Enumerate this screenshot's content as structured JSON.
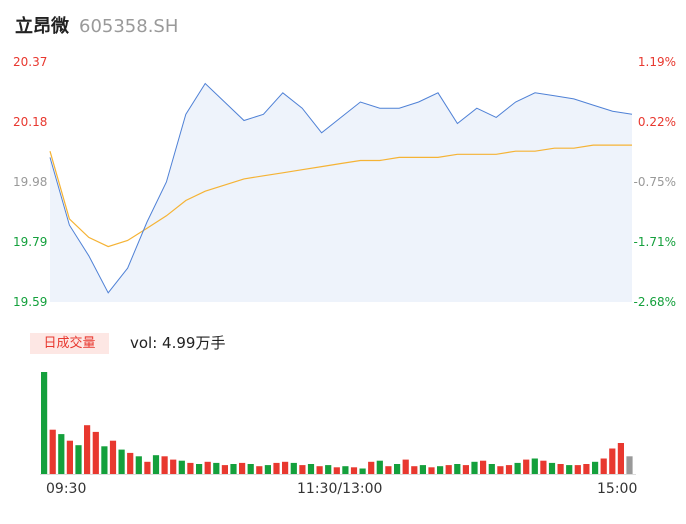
{
  "header": {
    "name": "立昂微",
    "code": "605358.SH"
  },
  "y_left_labels": [
    "20.37",
    "20.18",
    "19.98",
    "19.79",
    "19.59"
  ],
  "y_right_labels": [
    "1.19%",
    "0.22%",
    "-0.75%",
    "-1.71%",
    "-2.68%"
  ],
  "colors": {
    "up": "#e8382f",
    "down": "#14a03c",
    "flat": "#999999",
    "price_line": "#4f81d6",
    "avg_line": "#f5b335",
    "area": "#eef3fb"
  },
  "volume_legend": {
    "label": "日成交量",
    "value": "vol: 4.99万手"
  },
  "x_labels": [
    "09:30",
    "11:30/13:00",
    "15:00"
  ],
  "chart_data": [
    {
      "type": "line",
      "title": "",
      "ylim": [
        19.59,
        20.37
      ],
      "x_ticks": [
        "09:30",
        "11:30/13:00",
        "15:00"
      ],
      "series": [
        {
          "values": [
            20.06,
            19.84,
            19.74,
            19.62,
            19.7,
            19.85,
            19.98,
            20.2,
            20.3,
            20.24,
            20.18,
            20.2,
            20.27,
            20.22,
            20.14,
            20.19,
            20.24,
            20.22,
            20.22,
            20.24,
            20.27,
            20.17,
            20.22,
            20.19,
            20.24,
            20.27,
            20.26,
            20.25,
            20.23,
            20.21,
            20.2
          ]
        },
        {
          "values": [
            20.08,
            19.86,
            19.8,
            19.77,
            19.79,
            19.83,
            19.87,
            19.92,
            19.95,
            19.97,
            19.99,
            20.0,
            20.01,
            20.02,
            20.03,
            20.04,
            20.05,
            20.05,
            20.06,
            20.06,
            20.06,
            20.07,
            20.07,
            20.07,
            20.08,
            20.08,
            20.09,
            20.09,
            20.1,
            20.1,
            20.1
          ]
        }
      ]
    },
    {
      "type": "bar",
      "title": "",
      "values": [
        92,
        40,
        36,
        30,
        26,
        44,
        38,
        25,
        30,
        22,
        19,
        16,
        11,
        17,
        16,
        13,
        12,
        10,
        9,
        11,
        10,
        8,
        9,
        10,
        9,
        7,
        8,
        10,
        11,
        10,
        8,
        9,
        7,
        8,
        6,
        7,
        6,
        5,
        11,
        12,
        7,
        9,
        13,
        7,
        8,
        6,
        7,
        8,
        9,
        8,
        11,
        12,
        9,
        7,
        8,
        10,
        13,
        14,
        12,
        10,
        9,
        8,
        8,
        9,
        11,
        14,
        23,
        28,
        16
      ],
      "directions": [
        "down",
        "up",
        "down",
        "up",
        "down",
        "up",
        "up",
        "down",
        "up",
        "down",
        "up",
        "down",
        "up",
        "down",
        "up",
        "up",
        "down",
        "up",
        "down",
        "up",
        "down",
        "up",
        "down",
        "up",
        "down",
        "up",
        "down",
        "up",
        "up",
        "down",
        "up",
        "down",
        "up",
        "down",
        "up",
        "down",
        "up",
        "down",
        "up",
        "down",
        "up",
        "down",
        "up",
        "up",
        "down",
        "up",
        "down",
        "up",
        "down",
        "up",
        "down",
        "up",
        "down",
        "up",
        "up",
        "down",
        "up",
        "down",
        "up",
        "down",
        "up",
        "down",
        "up",
        "up",
        "down",
        "up",
        "up",
        "up",
        "flat"
      ]
    }
  ]
}
